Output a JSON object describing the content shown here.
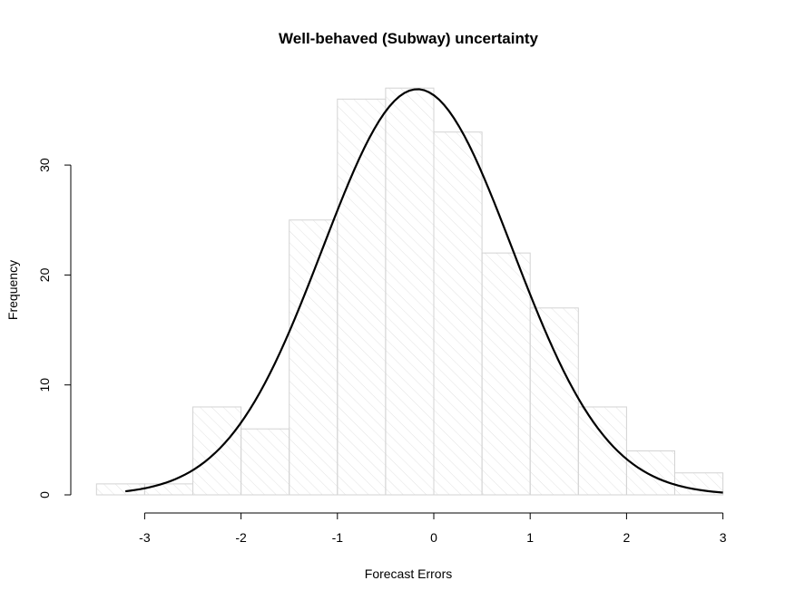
{
  "chart_data": {
    "type": "bar",
    "title": "Well-behaved (Subway) uncertainty",
    "xlabel": "Forecast Errors",
    "ylabel": "Frequency",
    "xlim": [
      -3.5,
      3.0
    ],
    "ylim": [
      0,
      37
    ],
    "x_ticks": [
      -3,
      -2,
      -1,
      0,
      1,
      2,
      3
    ],
    "y_ticks": [
      0,
      10,
      20,
      30
    ],
    "x_tick_labels": [
      "-3",
      "-2",
      "-1",
      "0",
      "1",
      "2",
      "3"
    ],
    "y_tick_labels": [
      "0",
      "10",
      "20",
      "30"
    ],
    "bins": [
      {
        "x0": -3.5,
        "x1": -3.0,
        "count": 1
      },
      {
        "x0": -3.0,
        "x1": -2.5,
        "count": 1
      },
      {
        "x0": -2.5,
        "x1": -2.0,
        "count": 8
      },
      {
        "x0": -2.0,
        "x1": -1.5,
        "count": 6
      },
      {
        "x0": -1.5,
        "x1": -1.0,
        "count": 25
      },
      {
        "x0": -1.0,
        "x1": -0.5,
        "count": 36
      },
      {
        "x0": -0.5,
        "x1": 0.0,
        "count": 37
      },
      {
        "x0": 0.0,
        "x1": 0.5,
        "count": 33
      },
      {
        "x0": 0.5,
        "x1": 1.0,
        "count": 22
      },
      {
        "x0": 1.0,
        "x1": 1.5,
        "count": 17
      },
      {
        "x0": 1.5,
        "x1": 2.0,
        "count": 8
      },
      {
        "x0": 2.0,
        "x1": 2.5,
        "count": 4
      },
      {
        "x0": 2.5,
        "x1": 3.0,
        "count": 2
      }
    ],
    "density_curve": {
      "mean": -0.17,
      "sd": 0.985,
      "peak": 36.9,
      "x_range": [
        -3.2,
        3.0
      ]
    },
    "colors": {
      "bar_outline": "#d3d3d3",
      "hatch": "#e2e2e2",
      "curve": "#000000"
    },
    "grid": false,
    "legend": false
  }
}
